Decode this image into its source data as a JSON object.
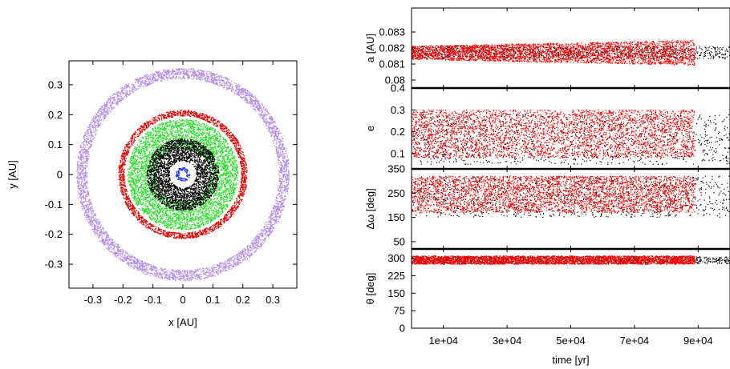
{
  "chart_data": [
    {
      "type": "scatter",
      "xlabel": "x [AU]",
      "ylabel": "y [AU]",
      "xlim": [
        -0.38,
        0.38
      ],
      "ylim": [
        -0.38,
        0.38
      ],
      "xticks": [
        -0.3,
        -0.2,
        -0.1,
        0,
        0.1,
        0.2,
        0.3
      ],
      "yticks": [
        -0.3,
        -0.2,
        -0.1,
        0,
        0.1,
        0.2,
        0.3
      ],
      "xtick_labels": [
        "-0.3",
        "-0.2",
        "-0.1",
        "0",
        "0.1",
        "0.2",
        "0.3"
      ],
      "ytick_labels": [
        "-0.3",
        "-0.2",
        "-0.1",
        "0",
        "0.1",
        "0.2",
        "0.3"
      ],
      "rings": [
        {
          "color": "#b388e6",
          "r_in": 0.32,
          "r_out": 0.355
        },
        {
          "color": "#e00000",
          "r_in": 0.195,
          "r_out": 0.215
        },
        {
          "color": "#22dd22",
          "r_in": 0.09,
          "r_out": 0.185
        },
        {
          "color": "#000000",
          "r_in": 0.045,
          "r_out": 0.12
        },
        {
          "color": "#1530ee",
          "r_in": 0.012,
          "r_out": 0.024
        }
      ]
    },
    {
      "type": "scatter",
      "xlabel": "time [yr]",
      "xlim": [
        0,
        100000
      ],
      "xticks": [
        10000,
        30000,
        50000,
        70000,
        90000
      ],
      "xtick_labels": [
        "1e+04",
        "3e+04",
        "5e+04",
        "7e+04",
        "9e+04"
      ],
      "panels": [
        {
          "ylabel": "a [AU]",
          "ylim": [
            0.0795,
            0.0845
          ],
          "yticks": [
            0.08,
            0.081,
            0.082,
            0.083
          ],
          "ytick_labels": [
            "0.08",
            "0.081",
            "0.082",
            "0.083"
          ],
          "series": [
            {
              "color": "#000000",
              "values_from": 0,
              "values_to": 100000,
              "center": 0.0817,
              "spread": 0.0004
            },
            {
              "color": "#ff0000",
              "values_from": 0,
              "values_to": 89000,
              "center": 0.0817,
              "spread": 0.0006
            }
          ]
        },
        {
          "ylabel": "e",
          "ylim": [
            0.03,
            0.4
          ],
          "yticks": [
            0.1,
            0.2,
            0.3,
            0.4
          ],
          "ytick_labels": [
            "0.1",
            "0.2",
            "0.3",
            "0.4"
          ],
          "series": [
            {
              "color": "#000000",
              "values_from": 0,
              "values_to": 100000,
              "min": 0.05,
              "max": 0.28
            },
            {
              "color": "#ff0000",
              "values_from": 0,
              "values_to": 89000,
              "min": 0.08,
              "max": 0.3
            }
          ]
        },
        {
          "ylabel": "Δω [deg]",
          "ylim": [
            20,
            350
          ],
          "yticks": [
            50,
            150,
            250,
            350
          ],
          "ytick_labels": [
            "50",
            "150",
            "250",
            "350"
          ],
          "series": [
            {
              "color": "#000000",
              "values_from": 0,
              "values_to": 100000,
              "min": 150,
              "max": 320
            },
            {
              "color": "#ff0000",
              "values_from": 0,
              "values_to": 89000,
              "min": 170,
              "max": 320
            }
          ]
        },
        {
          "ylabel": "θ [deg]",
          "ylim": [
            0,
            340
          ],
          "yticks": [
            0,
            75,
            150,
            225,
            300
          ],
          "ytick_labels": [
            "0",
            "75",
            "150",
            "225",
            "300"
          ],
          "series": [
            {
              "color": "#000000",
              "values_from": 0,
              "values_to": 100000,
              "center": 292,
              "spread": 15
            },
            {
              "color": "#ff0000",
              "values_from": 0,
              "values_to": 89000,
              "center": 292,
              "spread": 18
            }
          ]
        }
      ]
    }
  ]
}
